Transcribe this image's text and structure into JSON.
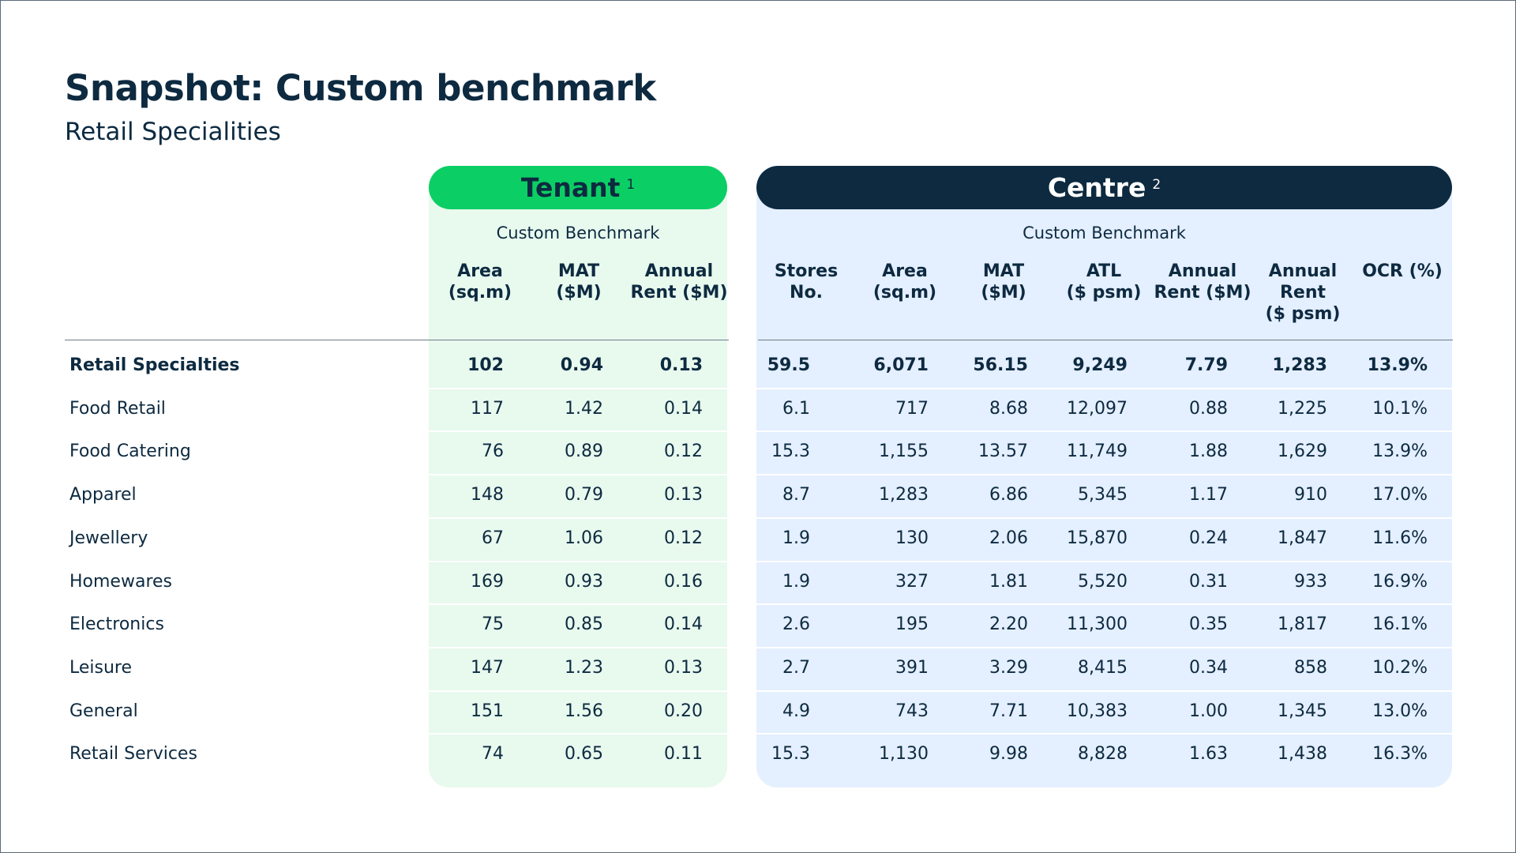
{
  "header": {
    "title": "Snapshot: Custom benchmark",
    "subtitle": "Retail Specialities"
  },
  "tenant": {
    "label": "Tenant",
    "footnote": "1",
    "benchmark_label": "Custom Benchmark",
    "columns": [
      "Area\n(sq.m)",
      "MAT\n($M)",
      "Annual\nRent ($M)"
    ]
  },
  "centre": {
    "label": "Centre",
    "footnote": "2",
    "benchmark_label": "Custom Benchmark",
    "columns": [
      "Stores\nNo.",
      "Area\n(sq.m)",
      "MAT\n($M)",
      "ATL\n($ psm)",
      "Annual\nRent ($M)",
      "Annual\nRent\n($ psm)",
      "OCR (%)"
    ]
  },
  "rows": [
    {
      "label": "Retail Specialties",
      "total": true,
      "tenant": [
        "102",
        "0.94",
        "0.13"
      ],
      "centre": [
        "59.5",
        "6,071",
        "56.15",
        "9,249",
        "7.79",
        "1,283",
        "13.9%"
      ]
    },
    {
      "label": "Food Retail",
      "total": false,
      "tenant": [
        "117",
        "1.42",
        "0.14"
      ],
      "centre": [
        "6.1",
        "717",
        "8.68",
        "12,097",
        "0.88",
        "1,225",
        "10.1%"
      ]
    },
    {
      "label": "Food Catering",
      "total": false,
      "tenant": [
        "76",
        "0.89",
        "0.12"
      ],
      "centre": [
        "15.3",
        "1,155",
        "13.57",
        "11,749",
        "1.88",
        "1,629",
        "13.9%"
      ]
    },
    {
      "label": "Apparel",
      "total": false,
      "tenant": [
        "148",
        "0.79",
        "0.13"
      ],
      "centre": [
        "8.7",
        "1,283",
        "6.86",
        "5,345",
        "1.17",
        "910",
        "17.0%"
      ]
    },
    {
      "label": "Jewellery",
      "total": false,
      "tenant": [
        "67",
        "1.06",
        "0.12"
      ],
      "centre": [
        "1.9",
        "130",
        "2.06",
        "15,870",
        "0.24",
        "1,847",
        "11.6%"
      ]
    },
    {
      "label": "Homewares",
      "total": false,
      "tenant": [
        "169",
        "0.93",
        "0.16"
      ],
      "centre": [
        "1.9",
        "327",
        "1.81",
        "5,520",
        "0.31",
        "933",
        "16.9%"
      ]
    },
    {
      "label": "Electronics",
      "total": false,
      "tenant": [
        "75",
        "0.85",
        "0.14"
      ],
      "centre": [
        "2.6",
        "195",
        "2.20",
        "11,300",
        "0.35",
        "1,817",
        "16.1%"
      ]
    },
    {
      "label": "Leisure",
      "total": false,
      "tenant": [
        "147",
        "1.23",
        "0.13"
      ],
      "centre": [
        "2.7",
        "391",
        "3.29",
        "8,415",
        "0.34",
        "858",
        "10.2%"
      ]
    },
    {
      "label": "General",
      "total": false,
      "tenant": [
        "151",
        "1.56",
        "0.20"
      ],
      "centre": [
        "4.9",
        "743",
        "7.71",
        "10,383",
        "1.00",
        "1,345",
        "13.0%"
      ]
    },
    {
      "label": "Retail Services",
      "total": false,
      "tenant": [
        "74",
        "0.65",
        "0.11"
      ],
      "centre": [
        "15.3",
        "1,130",
        "9.98",
        "8,828",
        "1.63",
        "1,438",
        "16.3%"
      ]
    }
  ]
}
